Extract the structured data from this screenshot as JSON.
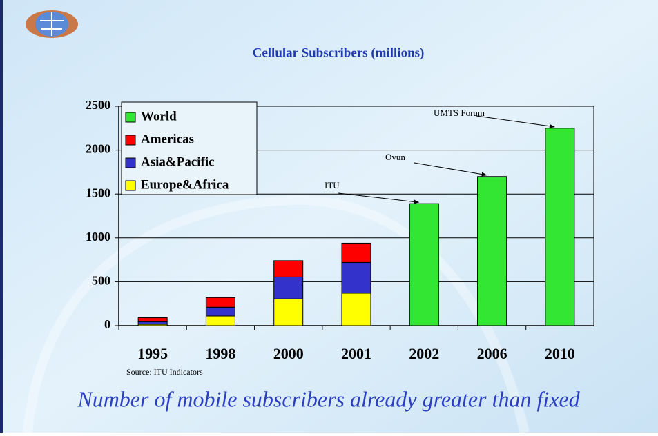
{
  "chart_data": {
    "type": "bar",
    "stacked": true,
    "title": "Cellular Subscribers (millions)",
    "categories": [
      "1995",
      "1998",
      "2000",
      "2001",
      "2002",
      "2006",
      "2010"
    ],
    "series": [
      {
        "name": "World",
        "color": "#33e633",
        "values": [
          null,
          null,
          null,
          null,
          1390,
          1700,
          2250
        ]
      },
      {
        "name": "Americas",
        "color": "#ff0000",
        "values": [
          45,
          110,
          185,
          220,
          null,
          null,
          null
        ]
      },
      {
        "name": "Asia&Pacific",
        "color": "#3333cc",
        "values": [
          30,
          100,
          250,
          350,
          null,
          null,
          null
        ]
      },
      {
        "name": "Europe&Africa",
        "color": "#ffff00",
        "values": [
          15,
          110,
          305,
          370,
          null,
          null,
          null
        ]
      }
    ],
    "ylim": [
      0,
      2500
    ],
    "yticks": [
      0,
      500,
      1000,
      1500,
      2000,
      2500
    ],
    "grid": true,
    "legend": "upper left",
    "annotations": [
      "UMTS Forum",
      "Ovun",
      "ITU"
    ],
    "source": "Source: ITU Indicators",
    "caption": "Number of mobile subscribers already greater than fixed"
  }
}
